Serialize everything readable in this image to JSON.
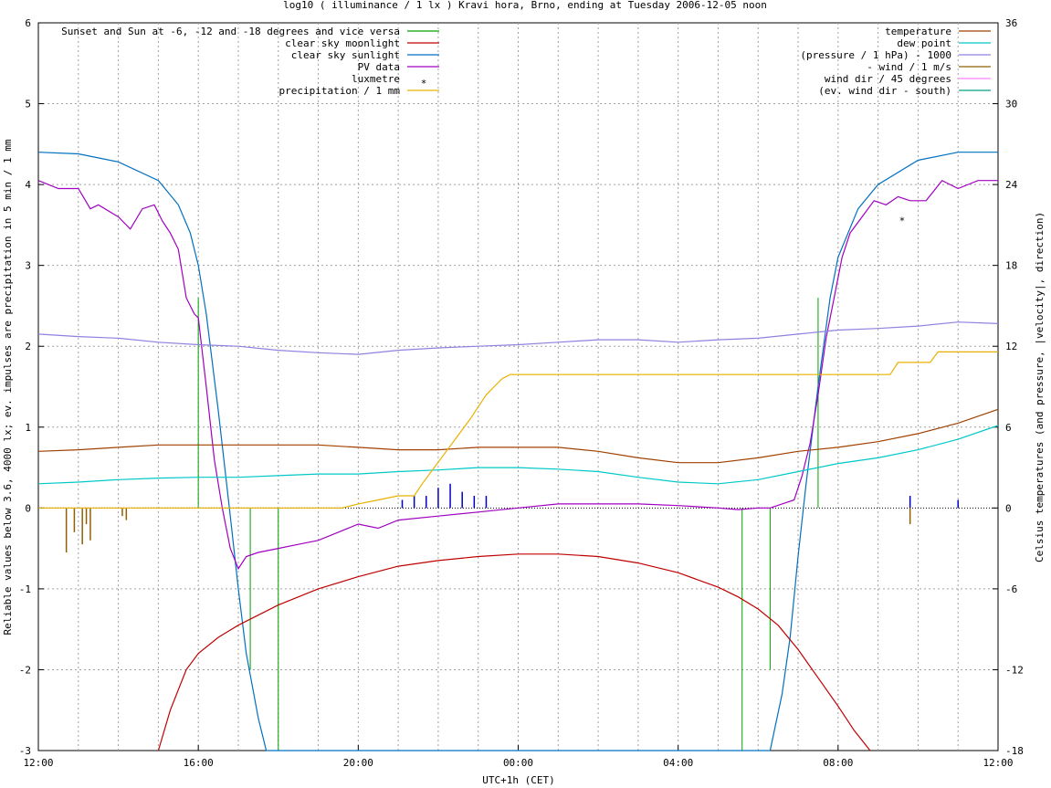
{
  "chart_data": {
    "type": "line",
    "title": "log10 ( illuminance / 1 lx ) Kravi hora, Brno, ending at Tuesday 2006-12-05 noon",
    "xlabel": "UTC+1h (CET)",
    "ylabel": "Reliable values below 3.6, 4000 lx; ev. impulses are precipitation in 5 min / 1 mm",
    "y2label": "Celsius temperatures (and pressure, |velocity|, direction)",
    "xlim": [
      0,
      24
    ],
    "ylim": [
      -3,
      6
    ],
    "y2lim": [
      -18,
      36
    ],
    "x_ticks": [
      0,
      4,
      8,
      12,
      16,
      20,
      24
    ],
    "x_tick_labels": [
      "12:00",
      "16:00",
      "20:00",
      "00:00",
      "04:00",
      "08:00",
      "12:00"
    ],
    "y_ticks": [
      -3,
      -2,
      -1,
      0,
      1,
      2,
      3,
      4,
      5,
      6
    ],
    "y_tick_labels": [
      "-3",
      "-2",
      "-1",
      "0",
      "1",
      "2",
      "3",
      "4",
      "5",
      "6"
    ],
    "y2_ticks": [
      -18,
      -12,
      -6,
      0,
      6,
      12,
      18,
      24,
      30,
      36
    ],
    "y2_tick_labels": [
      "-18",
      "-12",
      "-6",
      "0",
      "6",
      "12",
      "18",
      "24",
      "30",
      "36"
    ],
    "grid": true,
    "legend_left": [
      {
        "name": "Sunset and Sun at -6, -12 and -18 degrees and vice versa",
        "color": "#00a000"
      },
      {
        "name": "clear sky moonlight",
        "color": "#c00000"
      },
      {
        "name": "clear sky sunlight",
        "color": "#0070c0"
      },
      {
        "name": "PV data",
        "color": "#a000c0"
      },
      {
        "name": "luxmetre",
        "color": "#00a0ff",
        "marker": "*"
      },
      {
        "name": "precipitation / 1 mm",
        "color": "#e8b000"
      }
    ],
    "legend_right": [
      {
        "name": "temperature",
        "color": "#a04000"
      },
      {
        "name": "dew point",
        "color": "#00c8c8"
      },
      {
        "name": "(pressure / 1 hPa) - 1000",
        "color": "#9080e0"
      },
      {
        "name": "- wind / 1 m/s",
        "color": "#906000"
      },
      {
        "name": "wind dir / 45 degrees",
        "color": "#ff80ff"
      },
      {
        "name": "(ev. wind dir - south)",
        "color": "#00a080"
      }
    ],
    "series": [
      {
        "name": "clear sky sunlight",
        "color": "#0070c0",
        "axis": "left",
        "x": [
          0,
          1,
          2,
          3,
          3.5,
          3.8,
          4.0,
          4.2,
          4.5,
          4.8,
          5.0,
          5.2,
          5.5,
          5.7,
          18.3,
          18.6,
          18.8,
          19.0,
          19.2,
          19.5,
          19.8,
          20.0,
          20.5,
          21,
          22,
          23,
          24
        ],
        "y": [
          4.4,
          4.38,
          4.28,
          4.05,
          3.75,
          3.4,
          3.0,
          2.4,
          1.2,
          -0.1,
          -1.0,
          -1.8,
          -2.6,
          -3.0,
          -3.0,
          -2.3,
          -1.6,
          -0.6,
          0.3,
          1.5,
          2.6,
          3.1,
          3.7,
          4.0,
          4.3,
          4.4,
          4.4
        ]
      },
      {
        "name": "clear sky moonlight",
        "color": "#c00000",
        "axis": "left",
        "x": [
          3.0,
          3.3,
          3.7,
          4.0,
          4.5,
          5.0,
          6.0,
          7.0,
          8.0,
          9.0,
          10.0,
          11.0,
          12.0,
          13.0,
          14.0,
          15.0,
          16.0,
          17.0,
          17.5,
          18.0,
          18.5,
          19.0,
          19.5,
          20.0,
          20.4,
          20.8
        ],
        "y": [
          -3.0,
          -2.5,
          -2.0,
          -1.8,
          -1.6,
          -1.45,
          -1.2,
          -1.0,
          -0.85,
          -0.72,
          -0.65,
          -0.6,
          -0.57,
          -0.57,
          -0.6,
          -0.68,
          -0.8,
          -0.98,
          -1.1,
          -1.25,
          -1.45,
          -1.75,
          -2.1,
          -2.45,
          -2.75,
          -3.0
        ]
      },
      {
        "name": "PV data",
        "color": "#a000c0",
        "axis": "left",
        "x": [
          0,
          0.5,
          1.0,
          1.3,
          1.5,
          2.0,
          2.3,
          2.6,
          2.9,
          3.1,
          3.3,
          3.5,
          3.7,
          3.9,
          4.0,
          4.2,
          4.4,
          4.6,
          4.8,
          5.0,
          5.2,
          5.5,
          6.0,
          6.5,
          7.0,
          7.5,
          8.0,
          8.5,
          9.0,
          10,
          11,
          12,
          13,
          14,
          15,
          16,
          17,
          17.5,
          18.0,
          18.3,
          18.6,
          18.9,
          19.1,
          19.3,
          19.5,
          19.7,
          19.9,
          20.1,
          20.3,
          20.6,
          20.9,
          21.2,
          21.5,
          21.8,
          22.2,
          22.6,
          23.0,
          23.5,
          24
        ],
        "y": [
          4.05,
          3.95,
          3.95,
          3.7,
          3.75,
          3.6,
          3.45,
          3.7,
          3.75,
          3.55,
          3.4,
          3.2,
          2.6,
          2.4,
          2.35,
          1.5,
          0.6,
          0.0,
          -0.5,
          -0.75,
          -0.6,
          -0.55,
          -0.5,
          -0.45,
          -0.4,
          -0.3,
          -0.2,
          -0.25,
          -0.15,
          -0.1,
          -0.05,
          0.0,
          0.05,
          0.05,
          0.05,
          0.03,
          0.0,
          -0.02,
          0.0,
          0.0,
          0.05,
          0.1,
          0.4,
          0.8,
          1.4,
          2.1,
          2.6,
          3.1,
          3.4,
          3.6,
          3.8,
          3.75,
          3.85,
          3.8,
          3.8,
          4.05,
          3.95,
          4.05,
          4.05
        ]
      },
      {
        "name": "(pressure / 1 hPa) - 1000",
        "color": "#9080e0",
        "axis": "left",
        "x": [
          0,
          1,
          2,
          3,
          4,
          5,
          6,
          7,
          8,
          9,
          10,
          11,
          12,
          13,
          14,
          15,
          16,
          17,
          18,
          19,
          20,
          21,
          22,
          23,
          24
        ],
        "y": [
          2.15,
          2.12,
          2.1,
          2.05,
          2.02,
          2.0,
          1.95,
          1.92,
          1.9,
          1.95,
          1.98,
          2.0,
          2.02,
          2.05,
          2.08,
          2.08,
          2.05,
          2.08,
          2.1,
          2.15,
          2.2,
          2.22,
          2.25,
          2.3,
          2.28
        ]
      },
      {
        "name": "temperature",
        "color": "#a04000",
        "axis": "left",
        "x": [
          0,
          1,
          2,
          3,
          4,
          5,
          6,
          7,
          8,
          9,
          10,
          11,
          12,
          13,
          14,
          15,
          16,
          17,
          18,
          19,
          20,
          21,
          22,
          23,
          24
        ],
        "y": [
          0.7,
          0.72,
          0.75,
          0.78,
          0.78,
          0.78,
          0.78,
          0.78,
          0.75,
          0.72,
          0.72,
          0.75,
          0.75,
          0.75,
          0.7,
          0.62,
          0.56,
          0.56,
          0.62,
          0.7,
          0.75,
          0.82,
          0.92,
          1.05,
          1.22
        ]
      },
      {
        "name": "dew point",
        "color": "#00c8c8",
        "axis": "left",
        "x": [
          0,
          1,
          2,
          3,
          4,
          5,
          6,
          7,
          8,
          9,
          10,
          11,
          12,
          13,
          14,
          15,
          16,
          17,
          18,
          19,
          20,
          21,
          22,
          23,
          24
        ],
        "y": [
          0.3,
          0.32,
          0.35,
          0.37,
          0.38,
          0.38,
          0.4,
          0.42,
          0.42,
          0.45,
          0.47,
          0.5,
          0.5,
          0.48,
          0.45,
          0.38,
          0.32,
          0.3,
          0.35,
          0.45,
          0.55,
          0.62,
          0.72,
          0.85,
          1.02
        ]
      },
      {
        "name": "precipitation / 1 mm",
        "color": "#e8b000",
        "axis": "left",
        "x": [
          0,
          7.6,
          8.0,
          8.5,
          9.0,
          9.4,
          9.6,
          9.9,
          10.2,
          10.5,
          10.8,
          11.0,
          11.2,
          11.4,
          11.6,
          11.8,
          12,
          14,
          16,
          18,
          20,
          21.3,
          21.5,
          22.3,
          22.5,
          24
        ],
        "y": [
          0.0,
          0.0,
          0.05,
          0.1,
          0.15,
          0.15,
          0.3,
          0.5,
          0.7,
          0.9,
          1.1,
          1.25,
          1.4,
          1.5,
          1.6,
          1.65,
          1.65,
          1.65,
          1.65,
          1.65,
          1.65,
          1.65,
          1.8,
          1.8,
          1.93,
          1.93
        ]
      }
    ],
    "sun_impulses": [
      {
        "x": 4.0,
        "y": 2.6
      },
      {
        "x": 5.3,
        "y": -2.0
      },
      {
        "x": 6.0,
        "y": -3.0
      },
      {
        "x": 17.6,
        "y": -3.0
      },
      {
        "x": 18.3,
        "y": -2.0
      },
      {
        "x": 19.5,
        "y": 2.6
      }
    ],
    "precip_impulses": [
      {
        "x": 9.1,
        "y": 0.1
      },
      {
        "x": 9.4,
        "y": 0.15
      },
      {
        "x": 9.7,
        "y": 0.15
      },
      {
        "x": 10.0,
        "y": 0.25
      },
      {
        "x": 10.3,
        "y": 0.3
      },
      {
        "x": 10.6,
        "y": 0.2
      },
      {
        "x": 10.9,
        "y": 0.15
      },
      {
        "x": 11.2,
        "y": 0.15
      },
      {
        "x": 21.8,
        "y": 0.15
      },
      {
        "x": 23.0,
        "y": 0.1
      }
    ],
    "wind_impulses": [
      {
        "x": 0.7,
        "y": -0.55
      },
      {
        "x": 0.9,
        "y": -0.3
      },
      {
        "x": 1.1,
        "y": -0.45
      },
      {
        "x": 1.2,
        "y": -0.2
      },
      {
        "x": 1.3,
        "y": -0.4
      },
      {
        "x": 2.1,
        "y": -0.1
      },
      {
        "x": 2.2,
        "y": -0.15
      },
      {
        "x": 21.8,
        "y": -0.2
      }
    ],
    "luxmetre": [
      {
        "x": 21.6,
        "y": 3.6
      }
    ]
  }
}
